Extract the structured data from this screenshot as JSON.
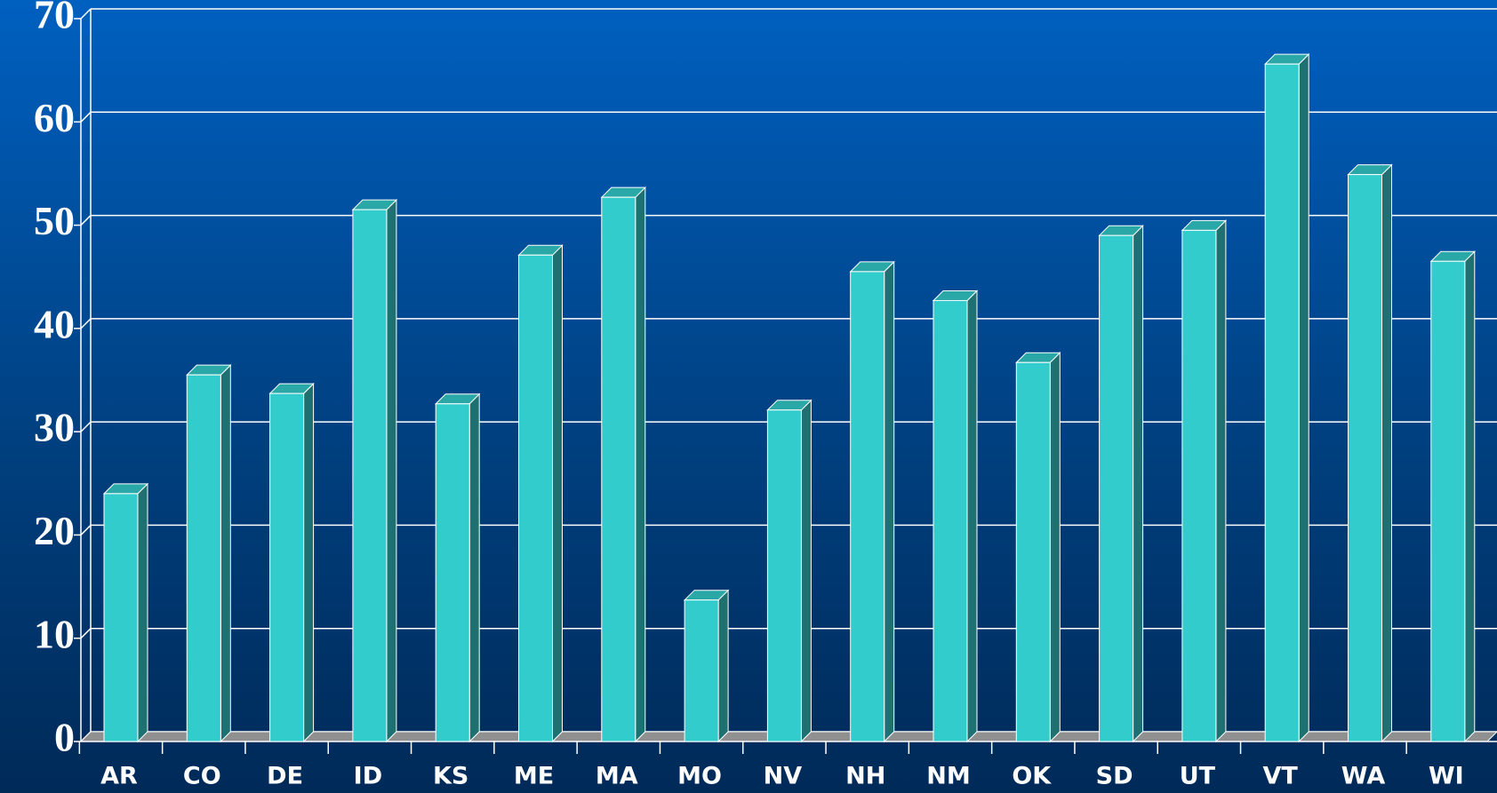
{
  "chart_data": {
    "type": "bar",
    "categories": [
      "AR",
      "CO",
      "DE",
      "ID",
      "KS",
      "ME",
      "MA",
      "MO",
      "NV",
      "NH",
      "NM",
      "OK",
      "SD",
      "UT",
      "VT",
      "WA",
      "WI"
    ],
    "values": [
      24.0,
      35.5,
      33.7,
      51.5,
      32.7,
      47.1,
      52.7,
      13.7,
      32.1,
      45.5,
      42.7,
      36.7,
      49.0,
      49.5,
      65.6,
      54.9,
      46.5
    ],
    "color": "#33cccc",
    "ylim": [
      0,
      70
    ],
    "yticks": [
      0,
      10,
      20,
      30,
      40,
      50,
      60,
      70
    ],
    "grid": true
  }
}
